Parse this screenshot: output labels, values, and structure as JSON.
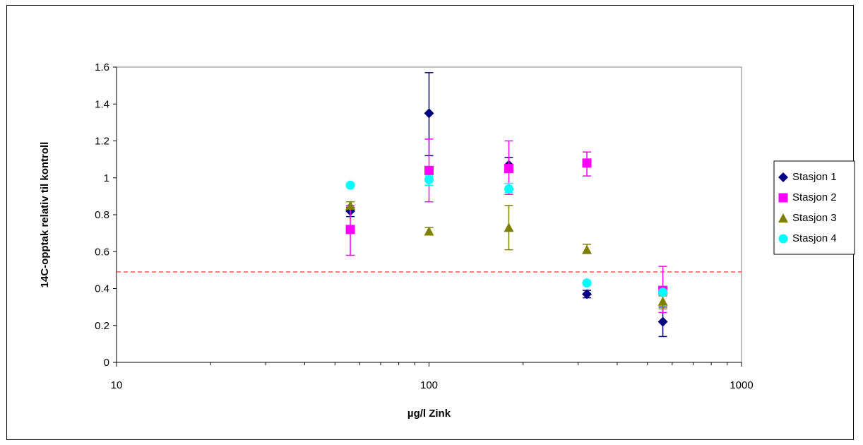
{
  "chart_data": {
    "type": "scatter",
    "title": "",
    "xlabel": "µg/l Zink",
    "ylabel": "14C-opptak relativ til kontroll",
    "xscale": "log",
    "xlim": [
      10,
      1000
    ],
    "ylim": [
      0,
      1.6
    ],
    "x_tick_labels": [
      "10",
      "100",
      "1000"
    ],
    "y_tick_labels": [
      "0",
      "0.2",
      "0.4",
      "0.6",
      "0.8",
      "1",
      "1.2",
      "1.4",
      "1.6"
    ],
    "grid": false,
    "legend_position": "right",
    "reference_line": {
      "y": 0.49,
      "style": "dashed",
      "color": "#ff0000"
    },
    "series": [
      {
        "name": "Stasjon 1",
        "marker": "diamond",
        "color": "#000080",
        "points": [
          {
            "x": 56,
            "y": 0.82,
            "err_low": 0.79,
            "err_high": 0.84
          },
          {
            "x": 100,
            "y": 1.35,
            "err_low": 1.12,
            "err_high": 1.57
          },
          {
            "x": 180,
            "y": 1.07,
            "err_low": 1.03,
            "err_high": 1.11
          },
          {
            "x": 320,
            "y": 0.37,
            "err_low": 0.35,
            "err_high": 0.39
          },
          {
            "x": 560,
            "y": 0.22,
            "err_low": 0.14,
            "err_high": 0.3
          }
        ]
      },
      {
        "name": "Stasjon 2",
        "marker": "square",
        "color": "#ff00ff",
        "points": [
          {
            "x": 56,
            "y": 0.72,
            "err_low": 0.58,
            "err_high": 0.85
          },
          {
            "x": 100,
            "y": 1.04,
            "err_low": 0.87,
            "err_high": 1.21
          },
          {
            "x": 180,
            "y": 1.05,
            "err_low": 0.91,
            "err_high": 1.2
          },
          {
            "x": 320,
            "y": 1.08,
            "err_low": 1.01,
            "err_high": 1.14
          },
          {
            "x": 560,
            "y": 0.39,
            "err_low": 0.27,
            "err_high": 0.52
          }
        ]
      },
      {
        "name": "Stasjon 3",
        "marker": "triangle",
        "color": "#808000",
        "points": [
          {
            "x": 56,
            "y": 0.85,
            "err_low": 0.83,
            "err_high": 0.87
          },
          {
            "x": 100,
            "y": 0.71,
            "err_low": 0.69,
            "err_high": 0.73
          },
          {
            "x": 180,
            "y": 0.73,
            "err_low": 0.61,
            "err_high": 0.85
          },
          {
            "x": 320,
            "y": 0.61,
            "err_low": 0.59,
            "err_high": 0.64
          },
          {
            "x": 560,
            "y": 0.33,
            "err_low": 0.29,
            "err_high": 0.36
          }
        ]
      },
      {
        "name": "Stasjon 4",
        "marker": "circle",
        "color": "#00ffff",
        "points": [
          {
            "x": 56,
            "y": 0.96,
            "err_low": 0.95,
            "err_high": 0.97
          },
          {
            "x": 100,
            "y": 0.99,
            "err_low": 0.96,
            "err_high": 1.01
          },
          {
            "x": 180,
            "y": 0.94,
            "err_low": 0.92,
            "err_high": 0.97
          },
          {
            "x": 320,
            "y": 0.43,
            "err_low": 0.42,
            "err_high": 0.44
          },
          {
            "x": 560,
            "y": 0.38,
            "err_low": 0.37,
            "err_high": 0.39
          }
        ]
      }
    ]
  }
}
